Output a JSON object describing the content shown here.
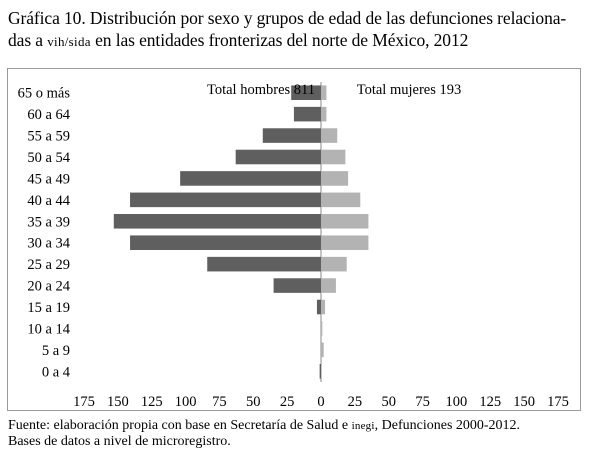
{
  "title": {
    "line1": "Gráfica 10. Distribución por sexo y grupos de edad de las defunciones relaciona-",
    "line2_pre": "das a ",
    "line2_sc": "vih/sida",
    "line2_post": " en las entidades fronterizas del norte de México, 2012"
  },
  "source": {
    "line1_pre": "Fuente: elaboración propia con base en Secretaría de Salud e ",
    "line1_sc": "inegi",
    "line1_post": ", Defunciones 2000-2012.",
    "line2": "Bases de datos a nivel de microregistro."
  },
  "chart_data": {
    "type": "bar",
    "orientation": "horizontal",
    "style": "population-pyramid",
    "categories": [
      "65 o más",
      "60 a 64",
      "55 a 59",
      "50 a 54",
      "45 a 49",
      "40 a 44",
      "35 a 39",
      "30 a 34",
      "25 a 29",
      "20 a 24",
      "15 a 19",
      "10 a 14",
      "5 a 9",
      "0 a 4"
    ],
    "series": [
      {
        "name": "Total hombres 811",
        "side": "left",
        "color": "#5f5f5f",
        "values": [
          22,
          20,
          43,
          63,
          104,
          141,
          153,
          141,
          84,
          35,
          3,
          0,
          0,
          1
        ]
      },
      {
        "name": "Total mujeres 193",
        "side": "right",
        "color": "#b3b3b3",
        "values": [
          4,
          4,
          12,
          18,
          20,
          29,
          35,
          35,
          19,
          11,
          3,
          1,
          2,
          0
        ]
      }
    ],
    "xlim": [
      -175,
      175
    ],
    "xticks": [
      -175,
      -150,
      -125,
      -100,
      -75,
      -50,
      -25,
      0,
      25,
      50,
      75,
      100,
      125,
      150,
      175
    ],
    "xtick_labels": [
      "175",
      "150",
      "125",
      "100",
      "75",
      "50",
      "25",
      "0",
      "25",
      "50",
      "75",
      "100",
      "125",
      "150",
      "175"
    ],
    "grid": false,
    "legend": "inline-top"
  }
}
